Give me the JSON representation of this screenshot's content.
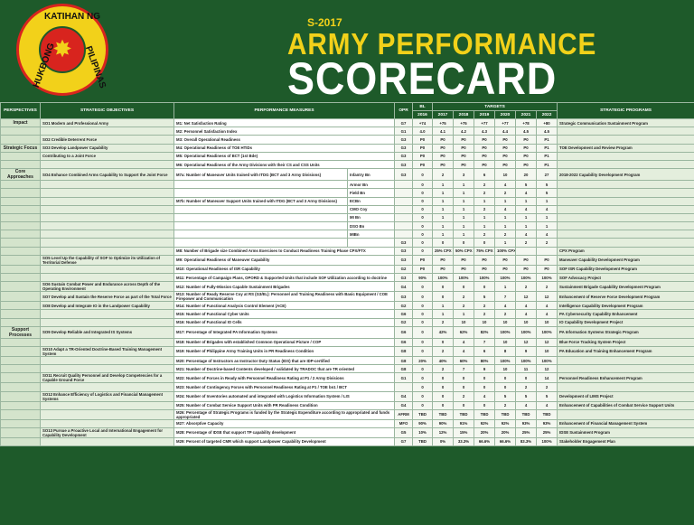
{
  "header": {
    "year": "S-2017",
    "title1": "ARMY PERFORMANCE",
    "title2": "SCORECARD",
    "seal_top": "KATIHAN NG",
    "seal_left": "HUKBONG",
    "seal_right": "PILIPINAS"
  },
  "columns": {
    "perspectives": "PERSPECTIVES",
    "objectives": "STRATEGIC OBJECTIVES",
    "measures": "PERFORMANCE MEASURES",
    "opr": "OPR",
    "bl": "BL",
    "targets": "TARGETS",
    "programs": "STRATEGIC PROGRAMS",
    "years": [
      "2016",
      "2017",
      "2018",
      "2019",
      "2020",
      "2021",
      "2022"
    ]
  },
  "rows": [
    {
      "p": "Impact",
      "o": "SO1 Modern and Professional Army",
      "m": "M1: Net Satisfaction Rating",
      "opr": "G7",
      "v": [
        "+74",
        "+75",
        "+75",
        "+77",
        "+77",
        "+78",
        "+80"
      ],
      "prog": "Strategic Communication Sustainment Program"
    },
    {
      "p": "",
      "o": "",
      "m": "M2: Personnel Satisfaction Index",
      "opr": "G1",
      "v": [
        "4.0",
        "4.1",
        "4.2",
        "4.3",
        "4.4",
        "4.5",
        "4.5"
      ],
      "prog": ""
    },
    {
      "p": "",
      "o": "SO2 Credible Deterrent Force",
      "m": "M3: Overall Operational Readiness",
      "opr": "G3",
      "v": [
        "P0",
        "P0",
        "P0",
        "P0",
        "P0",
        "P0",
        "P1"
      ],
      "prog": ""
    },
    {
      "p": "Strategic Focus",
      "o": "SO3 Develop Landpower Capability",
      "m": "M4: Operational Readiness of TOE HTIDs",
      "opr": "G3",
      "v": [
        "P0",
        "P0",
        "P0",
        "P0",
        "P0",
        "P0",
        "P1"
      ],
      "prog": "TOE Development and Review Program"
    },
    {
      "p": "",
      "o": "Contributing to a Joint Force",
      "m": "M5: Operational Readiness of BCT (1st Bde)",
      "opr": "G3",
      "v": [
        "P0",
        "P0",
        "P0",
        "P0",
        "P0",
        "P0",
        "P1"
      ],
      "prog": ""
    },
    {
      "p": "",
      "o": "",
      "m": "M6: Operational Readiness of the Army Divisions with their CS and CSS Units",
      "opr": "G3",
      "v": [
        "P0",
        "P0",
        "P0",
        "P0",
        "P0",
        "P0",
        "P1"
      ],
      "prog": ""
    },
    {
      "p": "Core Approaches",
      "o": "SO4 Enhance Combined Arms Capability to Support the Joint Force",
      "m": "M7a: Number of Maneuver Units trained with ITDG (BCT and 3 Army Divisions)",
      "u": "Infantry Bn",
      "opr": "G3",
      "v": [
        "0",
        "2",
        "3",
        "6",
        "10",
        "20",
        "27"
      ],
      "prog": "2018-2022 Capability Development Program"
    },
    {
      "p": "",
      "o": "",
      "m": "",
      "u": "Armor Bn",
      "opr": "",
      "v": [
        "0",
        "1",
        "1",
        "2",
        "4",
        "5",
        "5"
      ],
      "prog": ""
    },
    {
      "p": "",
      "o": "",
      "m": "",
      "u": "Field Bn",
      "opr": "",
      "v": [
        "0",
        "1",
        "1",
        "2",
        "2",
        "4",
        "5"
      ],
      "prog": ""
    },
    {
      "p": "",
      "o": "",
      "m": "M7b: Number of Maneuver Support Units trained with ITDG (BCT and 3 Army Divisions)",
      "u": "ECBn",
      "opr": "",
      "v": [
        "0",
        "1",
        "1",
        "1",
        "1",
        "1",
        "1"
      ],
      "prog": ""
    },
    {
      "p": "",
      "o": "",
      "m": "",
      "u": "CMO Coy",
      "opr": "",
      "v": [
        "0",
        "1",
        "1",
        "2",
        "4",
        "4",
        "4"
      ],
      "prog": ""
    },
    {
      "p": "",
      "o": "",
      "m": "",
      "u": "MI Bn",
      "opr": "",
      "v": [
        "0",
        "1",
        "1",
        "1",
        "1",
        "1",
        "1"
      ],
      "prog": ""
    },
    {
      "p": "",
      "o": "",
      "m": "",
      "u": "DSO Bn",
      "opr": "",
      "v": [
        "0",
        "1",
        "1",
        "1",
        "1",
        "1",
        "1"
      ],
      "prog": ""
    },
    {
      "p": "",
      "o": "",
      "m": "",
      "u": "MIBn",
      "opr": "",
      "v": [
        "0",
        "1",
        "1",
        "2",
        "2",
        "4",
        "4"
      ],
      "prog": ""
    },
    {
      "p": "",
      "o": "",
      "m": "",
      "u": "",
      "opr": "G3",
      "v": [
        "0",
        "0",
        "0",
        "0",
        "1",
        "2",
        "2"
      ],
      "prog": ""
    },
    {
      "p": "",
      "o": "",
      "m": "M8: Number of Brigade size Combined Arms Exercises to Conduct Readiness Training Phase CPX/FTX",
      "opr": "G3",
      "v": [
        "0",
        "25% CPX",
        "50% CPX",
        "75% CPX",
        "100% CPX",
        "",
        ""
      ],
      "prog": "CPX Program"
    },
    {
      "p": "",
      "o": "SO5 Level Up the Capability of SOF to Optimize its Utilization of Territorial Defense",
      "m": "M9: Operational Readiness of Maneuver Capability",
      "opr": "G3",
      "v": [
        "P0",
        "P0",
        "P0",
        "P0",
        "P0",
        "P0",
        "P0"
      ],
      "prog": "Maneuver Capability Development Program"
    },
    {
      "p": "",
      "o": "",
      "m": "M10: Operational Readiness of ISR Capability",
      "opr": "G2",
      "v": [
        "P0",
        "P0",
        "P0",
        "P0",
        "P0",
        "P0",
        "P0"
      ],
      "prog": "SOF ISR Capability Development Program"
    },
    {
      "p": "",
      "o": "",
      "m": "M11: Percentage of Campaign Plans, OPORD & Supported Units that include SOF Utilization according to doctrine",
      "opr": "G3",
      "v": [
        "90%",
        "100%",
        "100%",
        "100%",
        "100%",
        "100%",
        "100%"
      ],
      "prog": "SOF Advocacy Project"
    },
    {
      "p": "",
      "o": "SO6 Sustain Combat Power and Endurance across Depth of the Operating Environment",
      "m": "M12: Number of Fully-Mission Capable Sustainment Brigades",
      "opr": "G4",
      "v": [
        "0",
        "0",
        "0",
        "0",
        "1",
        "2",
        "2"
      ],
      "prog": "Sustainment Brigade Capability Development Program"
    },
    {
      "p": "",
      "o": "SO7 Develop and Sustain the Reserve Force as part of the Total Force",
      "m": "M13: Number of Ready Reserve Coy at RS (G3/EL): Personnel and Training Readiness with Basic Equipment / COE Firepower and Communication",
      "opr": "G3",
      "v": [
        "0",
        "0",
        "2",
        "5",
        "7",
        "12",
        "12"
      ],
      "prog": "Enhancement of Reserve Force Development Program"
    },
    {
      "p": "",
      "o": "SO8 Develop and Integrate IO in the Landpower Capability",
      "m": "M14: Number of Functional Analysis Control Element (ACE)",
      "opr": "G2",
      "v": [
        "0",
        "1",
        "2",
        "2",
        "4",
        "4",
        "4"
      ],
      "prog": "Intelligence Capability Development Program"
    },
    {
      "p": "",
      "o": "",
      "m": "M15: Number of Functional Cyber Units",
      "opr": "G6",
      "v": [
        "0",
        "1",
        "1",
        "2",
        "2",
        "4",
        "4"
      ],
      "prog": "PA Cybersecurity Capability Enhancement"
    },
    {
      "p": "",
      "o": "",
      "m": "M16: Number of Functional IO Cells",
      "opr": "G2",
      "v": [
        "0",
        "2",
        "10",
        "10",
        "10",
        "10",
        "10"
      ],
      "prog": "IO Capability Development Project"
    },
    {
      "p": "Support Processes",
      "o": "SO9 Develop Reliable and Integrated IS Systems",
      "m": "M17: Percentage of Integrated PA Information Systems",
      "opr": "G6",
      "v": [
        "0",
        "42%",
        "62%",
        "82%",
        "100%",
        "100%",
        "100%"
      ],
      "prog": "PA Information Systems Strategic Program"
    },
    {
      "p": "",
      "o": "",
      "m": "M18: Number of Brigades with established Common Operational Picture / COP",
      "opr": "G6",
      "v": [
        "0",
        "0",
        "4",
        "7",
        "10",
        "12",
        "12"
      ],
      "prog": "Blue Force Tracking System Project"
    },
    {
      "p": "",
      "o": "SO10 Adapt a TR-Oriented Doctrine-Based Training Management System",
      "m": "M19: Number of Philippine Army Training Units in PR Readiness Condition",
      "opr": "G8",
      "v": [
        "0",
        "2",
        "4",
        "6",
        "8",
        "9",
        "10"
      ],
      "prog": "PA Education and Training Enhancement Program"
    },
    {
      "p": "",
      "o": "",
      "m": "M20: Percentage of Instructors as Instructor Duty Status (IDS) that are IDP-certified",
      "opr": "G8",
      "v": [
        "20%",
        "40%",
        "60%",
        "80%",
        "100%",
        "100%",
        "100%"
      ],
      "prog": ""
    },
    {
      "p": "",
      "o": "",
      "m": "M21: Number of Doctrine-based Contents developed / validated by TRADOC that are TR oriented",
      "opr": "G8",
      "v": [
        "0",
        "2",
        "7",
        "9",
        "10",
        "11",
        "12"
      ],
      "prog": ""
    },
    {
      "p": "",
      "o": "SO11 Recruit Quality Personnel and Develop Competencies for a Capable Ground Force",
      "m": "M22: Number of Forces in Ready with Personnel Readiness Rating at P1 / 2 Army Divisions",
      "opr": "G1",
      "v": [
        "0",
        "0",
        "0",
        "0",
        "0",
        "0",
        "14"
      ],
      "prog": "Personnel Readiness Enhancement Program"
    },
    {
      "p": "",
      "o": "",
      "m": "M23: Number of Contingency Forces with Personnel Readiness Rating at P1 / TOE bn1 / BCT",
      "opr": "",
      "v": [
        "0",
        "0",
        "0",
        "0",
        "0",
        "2",
        "2"
      ],
      "prog": ""
    },
    {
      "p": "",
      "o": "SO12 Enhance Efficiency of Logistics and Financial Management Systems",
      "m": "M24: Number of Inventories automated and integrated with Logistics Information System / LIS",
      "opr": "G4",
      "v": [
        "0",
        "0",
        "2",
        "4",
        "5",
        "5",
        "5"
      ],
      "prog": "Development of LIMS Project"
    },
    {
      "p": "",
      "o": "",
      "m": "M25: Number of Combat Service Support Units with PR Readiness Condition",
      "opr": "G4",
      "v": [
        "0",
        "0",
        "0",
        "0",
        "2",
        "4",
        "4"
      ],
      "prog": "Enhancement of Capabilities of Combat Service Support Units"
    },
    {
      "p": "",
      "o": "",
      "m": "M26: Percentage of Strategic Programs is funded by the Strategic Expenditure according to appropriated and funds appropriated",
      "opr": "AFRM",
      "v": [
        "TBD",
        "TBD",
        "TBD",
        "TBD",
        "TBD",
        "TBD",
        "TBD"
      ],
      "prog": ""
    },
    {
      "p": "",
      "o": "",
      "m": "M27: Absorptive Capacity",
      "opr": "MFO",
      "v": [
        "90%",
        "90%",
        "91%",
        "92%",
        "92%",
        "93%",
        "93%"
      ],
      "prog": "Enhancement of Financial Management System"
    },
    {
      "p": "",
      "o": "SO13 Pursue a Proactive Local and International Engagement for Capability Development",
      "m": "M28: Percentage of IDSE that support TP capability development",
      "opr": "G5",
      "v": [
        "10%",
        "12%",
        "15%",
        "20%",
        "20%",
        "25%",
        "25%"
      ],
      "prog": "IDSE Sustainment Program"
    },
    {
      "p": "",
      "o": "",
      "m": "M29: Percent of targeted CMR which support Landpower Capability Development",
      "opr": "G7",
      "v": [
        "TBD",
        "0%",
        "33.3%",
        "66.6%",
        "66.6%",
        "83.3%",
        "100%"
      ],
      "prog": "Stakeholder Engagement Plan"
    }
  ]
}
